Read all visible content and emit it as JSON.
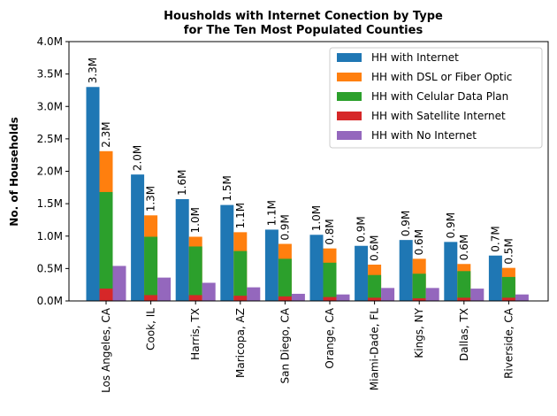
{
  "chart_data": {
    "type": "bar",
    "title_line1": "Housholds with Internet Conection by Type",
    "title_line2": "for The Ten Most Populated Counties",
    "xlabel": "",
    "ylabel": "No. of Households",
    "ylim": [
      0,
      4.0
    ],
    "y_unit": "M",
    "yticks": [
      "0.0M",
      "0.5M",
      "1.0M",
      "1.5M",
      "2.0M",
      "2.5M",
      "3.0M",
      "3.5M",
      "4.0M"
    ],
    "grid": false,
    "legend_position": "top-right",
    "categories": [
      "Los Angeles, CA",
      "Cook, IL",
      "Harris, TX",
      "Maricopa, AZ",
      "San Diego, CA",
      "Orange, CA",
      "Miami-Dade, FL",
      "Kings, NY",
      "Dallas, TX",
      "Riverside, CA"
    ],
    "series": [
      {
        "name": "HH with Internet",
        "color": "#1f77b4",
        "values": [
          3.3,
          1.95,
          1.57,
          1.48,
          1.1,
          1.02,
          0.85,
          0.94,
          0.91,
          0.7
        ],
        "labels": [
          "3.3M",
          "2.0M",
          "1.6M",
          "1.5M",
          "1.1M",
          "1.0M",
          "0.9M",
          "0.9M",
          "0.9M",
          "0.7M"
        ]
      },
      {
        "name": "HH with DSL or Fiber Optic",
        "color": "#ff7f0e",
        "values": [
          2.31,
          1.32,
          0.99,
          1.06,
          0.88,
          0.81,
          0.56,
          0.65,
          0.57,
          0.51
        ],
        "labels": [
          "2.3M",
          "1.3M",
          "1.0M",
          "1.1M",
          "0.9M",
          "0.8M",
          "0.6M",
          "0.6M",
          "0.6M",
          "0.5M"
        ]
      },
      {
        "name": "HH with Celular Data Plan",
        "color": "#2ca02c",
        "values": [
          1.68,
          0.99,
          0.84,
          0.77,
          0.65,
          0.59,
          0.4,
          0.42,
          0.46,
          0.37
        ]
      },
      {
        "name": "HH with Satellite Internet",
        "color": "#d62728",
        "values": [
          0.19,
          0.09,
          0.09,
          0.08,
          0.07,
          0.06,
          0.05,
          0.04,
          0.05,
          0.05
        ]
      },
      {
        "name": "HH with No Internet",
        "color": "#9467bd",
        "values": [
          0.54,
          0.36,
          0.28,
          0.21,
          0.11,
          0.1,
          0.2,
          0.2,
          0.19,
          0.1
        ]
      }
    ]
  }
}
